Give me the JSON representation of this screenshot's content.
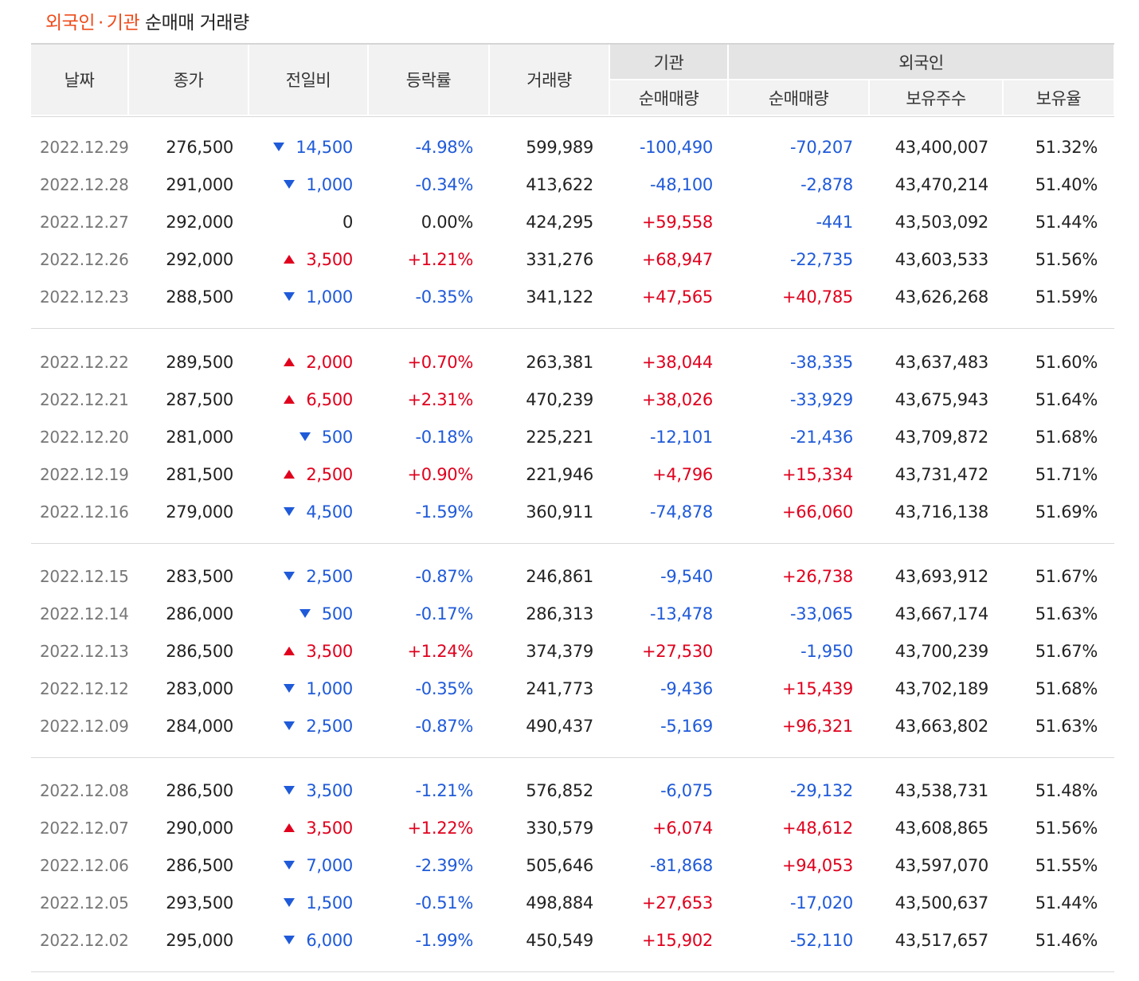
{
  "title": {
    "part1": "외국인",
    "sep": "·",
    "part2": "기관",
    "rest": "순매매 거래량"
  },
  "headers": {
    "date": "날짜",
    "close": "종가",
    "change": "전일비",
    "rate": "등락률",
    "volume": "거래량",
    "institution": "기관",
    "inst_net": "순매매량",
    "foreign": "외국인",
    "foreign_net": "순매매량",
    "foreign_shares": "보유주수",
    "foreign_ratio": "보유율"
  },
  "rows": [
    {
      "date": "2022.12.29",
      "close": "276,500",
      "dir": "down",
      "change": "14,500",
      "rate": "-4.98%",
      "volume": "599,989",
      "inst": "-100,490",
      "foreign": "-70,207",
      "shares": "43,400,007",
      "ratio": "51.32%"
    },
    {
      "date": "2022.12.28",
      "close": "291,000",
      "dir": "down",
      "change": "1,000",
      "rate": "-0.34%",
      "volume": "413,622",
      "inst": "-48,100",
      "foreign": "-2,878",
      "shares": "43,470,214",
      "ratio": "51.40%"
    },
    {
      "date": "2022.12.27",
      "close": "292,000",
      "dir": "flat",
      "change": "0",
      "rate": "0.00%",
      "volume": "424,295",
      "inst": "+59,558",
      "foreign": "-441",
      "shares": "43,503,092",
      "ratio": "51.44%"
    },
    {
      "date": "2022.12.26",
      "close": "292,000",
      "dir": "up",
      "change": "3,500",
      "rate": "+1.21%",
      "volume": "331,276",
      "inst": "+68,947",
      "foreign": "-22,735",
      "shares": "43,603,533",
      "ratio": "51.56%"
    },
    {
      "date": "2022.12.23",
      "close": "288,500",
      "dir": "down",
      "change": "1,000",
      "rate": "-0.35%",
      "volume": "341,122",
      "inst": "+47,565",
      "foreign": "+40,785",
      "shares": "43,626,268",
      "ratio": "51.59%"
    },
    {
      "date": "2022.12.22",
      "close": "289,500",
      "dir": "up",
      "change": "2,000",
      "rate": "+0.70%",
      "volume": "263,381",
      "inst": "+38,044",
      "foreign": "-38,335",
      "shares": "43,637,483",
      "ratio": "51.60%"
    },
    {
      "date": "2022.12.21",
      "close": "287,500",
      "dir": "up",
      "change": "6,500",
      "rate": "+2.31%",
      "volume": "470,239",
      "inst": "+38,026",
      "foreign": "-33,929",
      "shares": "43,675,943",
      "ratio": "51.64%"
    },
    {
      "date": "2022.12.20",
      "close": "281,000",
      "dir": "down",
      "change": "500",
      "rate": "-0.18%",
      "volume": "225,221",
      "inst": "-12,101",
      "foreign": "-21,436",
      "shares": "43,709,872",
      "ratio": "51.68%"
    },
    {
      "date": "2022.12.19",
      "close": "281,500",
      "dir": "up",
      "change": "2,500",
      "rate": "+0.90%",
      "volume": "221,946",
      "inst": "+4,796",
      "foreign": "+15,334",
      "shares": "43,731,472",
      "ratio": "51.71%"
    },
    {
      "date": "2022.12.16",
      "close": "279,000",
      "dir": "down",
      "change": "4,500",
      "rate": "-1.59%",
      "volume": "360,911",
      "inst": "-74,878",
      "foreign": "+66,060",
      "shares": "43,716,138",
      "ratio": "51.69%"
    },
    {
      "date": "2022.12.15",
      "close": "283,500",
      "dir": "down",
      "change": "2,500",
      "rate": "-0.87%",
      "volume": "246,861",
      "inst": "-9,540",
      "foreign": "+26,738",
      "shares": "43,693,912",
      "ratio": "51.67%"
    },
    {
      "date": "2022.12.14",
      "close": "286,000",
      "dir": "down",
      "change": "500",
      "rate": "-0.17%",
      "volume": "286,313",
      "inst": "-13,478",
      "foreign": "-33,065",
      "shares": "43,667,174",
      "ratio": "51.63%"
    },
    {
      "date": "2022.12.13",
      "close": "286,500",
      "dir": "up",
      "change": "3,500",
      "rate": "+1.24%",
      "volume": "374,379",
      "inst": "+27,530",
      "foreign": "-1,950",
      "shares": "43,700,239",
      "ratio": "51.67%"
    },
    {
      "date": "2022.12.12",
      "close": "283,000",
      "dir": "down",
      "change": "1,000",
      "rate": "-0.35%",
      "volume": "241,773",
      "inst": "-9,436",
      "foreign": "+15,439",
      "shares": "43,702,189",
      "ratio": "51.68%"
    },
    {
      "date": "2022.12.09",
      "close": "284,000",
      "dir": "down",
      "change": "2,500",
      "rate": "-0.87%",
      "volume": "490,437",
      "inst": "-5,169",
      "foreign": "+96,321",
      "shares": "43,663,802",
      "ratio": "51.63%"
    },
    {
      "date": "2022.12.08",
      "close": "286,500",
      "dir": "down",
      "change": "3,500",
      "rate": "-1.21%",
      "volume": "576,852",
      "inst": "-6,075",
      "foreign": "-29,132",
      "shares": "43,538,731",
      "ratio": "51.48%"
    },
    {
      "date": "2022.12.07",
      "close": "290,000",
      "dir": "up",
      "change": "3,500",
      "rate": "+1.22%",
      "volume": "330,579",
      "inst": "+6,074",
      "foreign": "+48,612",
      "shares": "43,608,865",
      "ratio": "51.56%"
    },
    {
      "date": "2022.12.06",
      "close": "286,500",
      "dir": "down",
      "change": "7,000",
      "rate": "-2.39%",
      "volume": "505,646",
      "inst": "-81,868",
      "foreign": "+94,053",
      "shares": "43,597,070",
      "ratio": "51.55%"
    },
    {
      "date": "2022.12.05",
      "close": "293,500",
      "dir": "down",
      "change": "1,500",
      "rate": "-0.51%",
      "volume": "498,884",
      "inst": "+27,653",
      "foreign": "-17,020",
      "shares": "43,500,637",
      "ratio": "51.44%"
    },
    {
      "date": "2022.12.02",
      "close": "295,000",
      "dir": "down",
      "change": "6,000",
      "rate": "-1.99%",
      "volume": "450,549",
      "inst": "+15,902",
      "foreign": "-52,110",
      "shares": "43,517,657",
      "ratio": "51.46%"
    }
  ],
  "colors": {
    "up": "#e0001d",
    "down": "#1f5ad9",
    "accent": "#ee4c1b"
  }
}
